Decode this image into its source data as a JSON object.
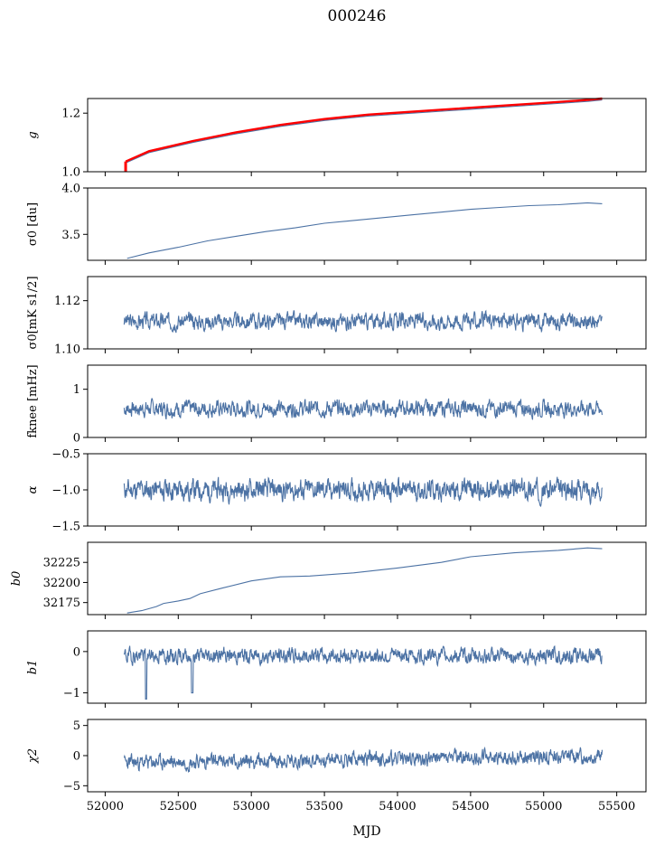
{
  "figure": {
    "title": "000246",
    "xlabel": "MJD"
  },
  "chart_data": [
    {
      "type": "line",
      "panel": "g",
      "ylabel": "g",
      "ylim": [
        1.0,
        1.25
      ],
      "yticks": [
        "1.0",
        "1.2"
      ],
      "yticks_values": [
        1.0,
        1.2
      ],
      "series": [
        {
          "color": "#4c72a4",
          "style": "trend",
          "x": [
            52140,
            52300,
            52600,
            52900,
            53200,
            53500,
            53800,
            54100,
            54400,
            54700,
            55000,
            55300,
            55400
          ],
          "y": [
            1.03,
            1.065,
            1.1,
            1.13,
            1.155,
            1.175,
            1.19,
            1.2,
            1.21,
            1.22,
            1.23,
            1.24,
            1.245
          ]
        },
        {
          "color": "#ff0000",
          "style": "trend",
          "x": [
            52140,
            52300,
            52600,
            52900,
            53200,
            53500,
            53800,
            54100,
            54400,
            54700,
            55000,
            55300,
            55400
          ],
          "y": [
            1.035,
            1.07,
            1.105,
            1.135,
            1.16,
            1.18,
            1.195,
            1.205,
            1.215,
            1.225,
            1.235,
            1.245,
            1.25
          ]
        }
      ],
      "xlim": [
        51880,
        55700
      ]
    },
    {
      "type": "line",
      "panel": "sigma0_du",
      "ylabel": "σ0 [du]",
      "ylim": [
        3.22,
        4.0
      ],
      "yticks": [
        "3.5",
        "4.0"
      ],
      "yticks_values": [
        3.5,
        4.0
      ],
      "series": [
        {
          "color": "#4c72a4",
          "style": "trend",
          "x": [
            52150,
            52300,
            52500,
            52700,
            52900,
            53100,
            53300,
            53500,
            53700,
            53900,
            54100,
            54300,
            54500,
            54700,
            54900,
            55100,
            55300,
            55400
          ],
          "y": [
            3.24,
            3.3,
            3.36,
            3.43,
            3.48,
            3.53,
            3.57,
            3.62,
            3.65,
            3.68,
            3.71,
            3.74,
            3.77,
            3.79,
            3.81,
            3.82,
            3.84,
            3.83
          ]
        }
      ],
      "xlim": [
        51880,
        55700
      ]
    },
    {
      "type": "line",
      "panel": "sigma0_mK",
      "ylabel": "σ0[mK s1/2]",
      "ylim": [
        1.1,
        1.13
      ],
      "yticks": [
        "1.10",
        "1.12"
      ],
      "yticks_values": [
        1.1,
        1.12
      ],
      "series": [
        {
          "color": "#4c72a4",
          "style": "noise",
          "n": 1300,
          "x_range": [
            52130,
            55400
          ],
          "mean": 1.1115,
          "amp": 0.0016,
          "seed": 3
        }
      ],
      "xlim": [
        51880,
        55700
      ]
    },
    {
      "type": "line",
      "panel": "fknee",
      "ylabel": "fknee [mHz]",
      "ylim": [
        0,
        1.5
      ],
      "yticks": [
        "0",
        "1"
      ],
      "yticks_values": [
        0,
        1
      ],
      "series": [
        {
          "color": "#4c72a4",
          "style": "noise",
          "n": 1300,
          "x_range": [
            52130,
            55400
          ],
          "mean": 0.6,
          "amp": 0.08,
          "seed": 7
        }
      ],
      "xlim": [
        51880,
        55700
      ]
    },
    {
      "type": "line",
      "panel": "alpha",
      "ylabel": "α",
      "ylim": [
        -1.5,
        -0.5
      ],
      "yticks": [
        "−1.5",
        "−1.0",
        "−0.5"
      ],
      "yticks_values": [
        -1.5,
        -1.0,
        -0.5
      ],
      "series": [
        {
          "color": "#4c72a4",
          "style": "noise",
          "n": 1300,
          "x_range": [
            52130,
            55400
          ],
          "mean": -1.0,
          "amp": 0.07,
          "seed": 11
        }
      ],
      "xlim": [
        51880,
        55700
      ]
    },
    {
      "type": "line",
      "panel": "b0",
      "ylabel": "b0",
      "ylim": [
        32160,
        32250
      ],
      "yticks": [
        "32175",
        "32200",
        "32225"
      ],
      "yticks_values": [
        32175,
        32200,
        32225
      ],
      "series": [
        {
          "color": "#4c72a4",
          "style": "trend",
          "x": [
            52150,
            52250,
            52350,
            52400,
            52500,
            52580,
            52650,
            52800,
            53000,
            53200,
            53400,
            53700,
            54000,
            54300,
            54500,
            54800,
            55100,
            55300,
            55400
          ],
          "y": [
            32162,
            32165,
            32170,
            32174,
            32177,
            32180,
            32186,
            32193,
            32202,
            32207,
            32208,
            32212,
            32218,
            32225,
            32232,
            32237,
            32240,
            32243,
            32242
          ]
        }
      ],
      "xlim": [
        51880,
        55700
      ]
    },
    {
      "type": "line",
      "panel": "b1",
      "ylabel": "b1",
      "ylim": [
        -1.25,
        0.5
      ],
      "yticks": [
        "−1",
        "0"
      ],
      "yticks_values": [
        -1,
        0
      ],
      "series": [
        {
          "color": "#4c72a4",
          "style": "noise",
          "n": 1300,
          "x_range": [
            52130,
            55400
          ],
          "mean": -0.1,
          "amp": 0.09,
          "seed": 19,
          "dips": [
            {
              "x": 52280,
              "y": -1.15
            },
            {
              "x": 52595,
              "y": -1.0
            }
          ]
        }
      ],
      "xlim": [
        51880,
        55700
      ]
    },
    {
      "type": "line",
      "panel": "chi2",
      "ylabel": "χ2",
      "ylim": [
        -6,
        6
      ],
      "yticks": [
        "−5",
        "0",
        "5"
      ],
      "yticks_values": [
        -5,
        0,
        5
      ],
      "series": [
        {
          "color": "#4c72a4",
          "style": "noise",
          "n": 1300,
          "x_range": [
            52130,
            55400
          ],
          "mean": -1.2,
          "amp": 0.6,
          "drift": 1.2,
          "seed": 23
        }
      ],
      "xlim": [
        51880,
        55700
      ],
      "xticks": [
        "52000",
        "52500",
        "53000",
        "53500",
        "54000",
        "54500",
        "55000",
        "55500"
      ],
      "xticks_values": [
        52000,
        52500,
        53000,
        53500,
        54000,
        54500,
        55000,
        55500
      ]
    }
  ]
}
